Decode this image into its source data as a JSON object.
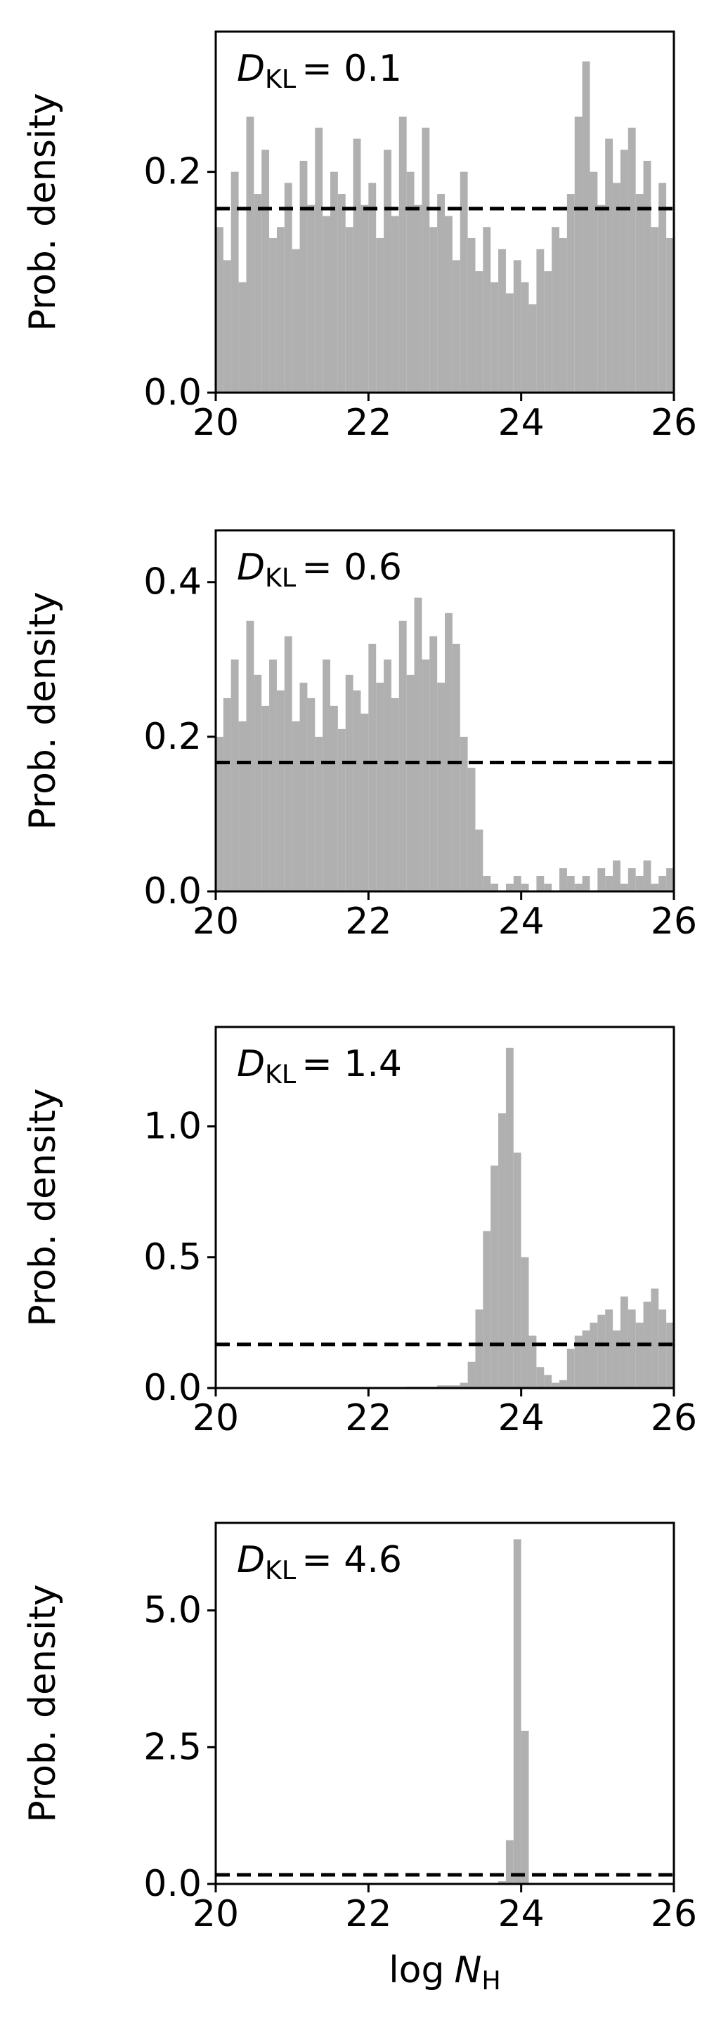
{
  "chart_data": [
    {
      "type": "histogram",
      "y_label": "Prob. density",
      "color": "#b0b0b0",
      "annotation": {
        "symbol": "D",
        "subscript": "KL",
        "text": "= 0.1"
      },
      "xlim": [
        20,
        26
      ],
      "xticks": [
        20,
        22,
        24,
        26
      ],
      "ylim": [
        0,
        0.327
      ],
      "yticks": [
        {
          "value": 0,
          "label": "0.0"
        },
        0.2
      ],
      "reference_line": 0.1667,
      "bins": [
        20.0,
        20.1,
        20.2,
        20.3,
        20.4,
        20.5,
        20.6,
        20.7,
        20.8,
        20.9,
        21.0,
        21.1,
        21.2,
        21.3,
        21.4,
        21.5,
        21.6,
        21.7,
        21.8,
        21.9,
        22.0,
        22.1,
        22.2,
        22.3,
        22.4,
        22.5,
        22.6,
        22.7,
        22.8,
        22.9,
        23.0,
        23.1,
        23.2,
        23.3,
        23.4,
        23.5,
        23.6,
        23.7,
        23.8,
        23.9,
        24.0,
        24.1,
        24.2,
        24.3,
        24.4,
        24.5,
        24.6,
        24.7,
        24.8,
        24.9,
        25.0,
        25.1,
        25.2,
        25.3,
        25.4,
        25.5,
        25.6,
        25.7,
        25.8,
        25.9,
        26.0
      ],
      "values": [
        0.15,
        0.12,
        0.2,
        0.1,
        0.25,
        0.18,
        0.22,
        0.14,
        0.15,
        0.19,
        0.13,
        0.21,
        0.17,
        0.24,
        0.16,
        0.2,
        0.18,
        0.15,
        0.23,
        0.17,
        0.19,
        0.14,
        0.22,
        0.16,
        0.25,
        0.2,
        0.17,
        0.24,
        0.15,
        0.18,
        0.16,
        0.12,
        0.2,
        0.14,
        0.11,
        0.15,
        0.1,
        0.13,
        0.09,
        0.12,
        0.1,
        0.08,
        0.13,
        0.11,
        0.15,
        0.14,
        0.18,
        0.25,
        0.3,
        0.2,
        0.17,
        0.23,
        0.19,
        0.22,
        0.24,
        0.18,
        0.21,
        0.15,
        0.19,
        0.14
      ]
    },
    {
      "type": "histogram",
      "y_label": "Prob. density",
      "color": "#b0b0b0",
      "annotation": {
        "symbol": "D",
        "subscript": "KL",
        "text": "= 0.6"
      },
      "xlim": [
        20,
        26
      ],
      "xticks": [
        20,
        22,
        24,
        26
      ],
      "ylim": [
        0,
        0.467
      ],
      "yticks": [
        {
          "value": 0,
          "label": "0.0"
        },
        0.2,
        0.4
      ],
      "reference_line": 0.1667,
      "bins": [
        20.0,
        20.1,
        20.2,
        20.3,
        20.4,
        20.5,
        20.6,
        20.7,
        20.8,
        20.9,
        21.0,
        21.1,
        21.2,
        21.3,
        21.4,
        21.5,
        21.6,
        21.7,
        21.8,
        21.9,
        22.0,
        22.1,
        22.2,
        22.3,
        22.4,
        22.5,
        22.6,
        22.7,
        22.8,
        22.9,
        23.0,
        23.1,
        23.2,
        23.3,
        23.4,
        23.5,
        23.6,
        23.7,
        23.8,
        23.9,
        24.0,
        24.1,
        24.2,
        24.3,
        24.4,
        24.5,
        24.6,
        24.7,
        24.8,
        24.9,
        25.0,
        25.1,
        25.2,
        25.3,
        25.4,
        25.5,
        25.6,
        25.7,
        25.8,
        25.9,
        26.0
      ],
      "values": [
        0.2,
        0.25,
        0.3,
        0.22,
        0.35,
        0.28,
        0.24,
        0.3,
        0.26,
        0.33,
        0.22,
        0.27,
        0.25,
        0.2,
        0.3,
        0.24,
        0.21,
        0.28,
        0.26,
        0.23,
        0.32,
        0.27,
        0.3,
        0.25,
        0.35,
        0.28,
        0.38,
        0.3,
        0.33,
        0.27,
        0.36,
        0.32,
        0.2,
        0.16,
        0.08,
        0.02,
        0.01,
        0.0,
        0.01,
        0.02,
        0.01,
        0.0,
        0.02,
        0.01,
        0.0,
        0.03,
        0.02,
        0.01,
        0.02,
        0.0,
        0.03,
        0.02,
        0.04,
        0.01,
        0.03,
        0.02,
        0.04,
        0.01,
        0.02,
        0.03
      ]
    },
    {
      "type": "histogram",
      "y_label": "Prob. density",
      "color": "#b0b0b0",
      "annotation": {
        "symbol": "D",
        "subscript": "KL",
        "text": "= 1.4"
      },
      "xlim": [
        20,
        26
      ],
      "xticks": [
        20,
        22,
        24,
        26
      ],
      "ylim": [
        0,
        1.38
      ],
      "yticks": [
        {
          "value": 0,
          "label": "0.0"
        },
        0.5,
        {
          "value": 1,
          "label": "1.0"
        }
      ],
      "reference_line": 0.1667,
      "bins": [
        20.0,
        20.1,
        20.2,
        20.3,
        20.4,
        20.5,
        20.6,
        20.7,
        20.8,
        20.9,
        21.0,
        21.1,
        21.2,
        21.3,
        21.4,
        21.5,
        21.6,
        21.7,
        21.8,
        21.9,
        22.0,
        22.1,
        22.2,
        22.3,
        22.4,
        22.5,
        22.6,
        22.7,
        22.8,
        22.9,
        23.0,
        23.1,
        23.2,
        23.3,
        23.4,
        23.5,
        23.6,
        23.7,
        23.8,
        23.9,
        24.0,
        24.1,
        24.2,
        24.3,
        24.4,
        24.5,
        24.6,
        24.7,
        24.8,
        24.9,
        25.0,
        25.1,
        25.2,
        25.3,
        25.4,
        25.5,
        25.6,
        25.7,
        25.8,
        25.9,
        26.0
      ],
      "values": [
        0,
        0,
        0,
        0,
        0,
        0,
        0,
        0,
        0,
        0,
        0,
        0,
        0,
        0,
        0,
        0,
        0,
        0,
        0,
        0,
        0,
        0,
        0,
        0,
        0,
        0.005,
        0.005,
        0.005,
        0.005,
        0.01,
        0.01,
        0.01,
        0.02,
        0.1,
        0.3,
        0.6,
        0.85,
        1.05,
        1.3,
        0.9,
        0.5,
        0.2,
        0.08,
        0.05,
        0.02,
        0.03,
        0.15,
        0.2,
        0.22,
        0.25,
        0.28,
        0.3,
        0.22,
        0.35,
        0.3,
        0.25,
        0.33,
        0.38,
        0.3,
        0.25
      ]
    },
    {
      "type": "histogram",
      "y_label": "Prob. density",
      "color": "#b0b0b0",
      "annotation": {
        "symbol": "D",
        "subscript": "KL",
        "text": "= 4.6"
      },
      "x_label": {
        "text": "log",
        "symbol": "N",
        "subscript": "H"
      },
      "xlim": [
        20,
        26
      ],
      "xticks": [
        20,
        22,
        24,
        26
      ],
      "ylim": [
        0,
        6.6
      ],
      "yticks": [
        {
          "value": 0,
          "label": "0.0"
        },
        2.5,
        {
          "value": 5,
          "label": "5.0"
        }
      ],
      "reference_line": 0.1667,
      "bins": [
        20.0,
        20.1,
        20.2,
        20.3,
        20.4,
        20.5,
        20.6,
        20.7,
        20.8,
        20.9,
        21.0,
        21.1,
        21.2,
        21.3,
        21.4,
        21.5,
        21.6,
        21.7,
        21.8,
        21.9,
        22.0,
        22.1,
        22.2,
        22.3,
        22.4,
        22.5,
        22.6,
        22.7,
        22.8,
        22.9,
        23.0,
        23.1,
        23.2,
        23.3,
        23.4,
        23.5,
        23.6,
        23.7,
        23.8,
        23.9,
        24.0,
        24.1,
        24.2,
        24.3,
        24.4,
        24.5,
        24.6,
        24.7,
        24.8,
        24.9,
        25.0,
        25.1,
        25.2,
        25.3,
        25.4,
        25.5,
        25.6,
        25.7,
        25.8,
        25.9,
        26.0
      ],
      "values": [
        0,
        0,
        0,
        0,
        0,
        0,
        0,
        0,
        0,
        0,
        0,
        0,
        0,
        0,
        0,
        0,
        0,
        0,
        0,
        0,
        0,
        0,
        0,
        0,
        0,
        0,
        0,
        0,
        0,
        0,
        0,
        0,
        0,
        0,
        0,
        0,
        0,
        0.05,
        0.8,
        6.3,
        2.8,
        0,
        0,
        0,
        0,
        0,
        0,
        0,
        0,
        0,
        0,
        0,
        0,
        0,
        0,
        0,
        0,
        0,
        0,
        0
      ]
    }
  ]
}
